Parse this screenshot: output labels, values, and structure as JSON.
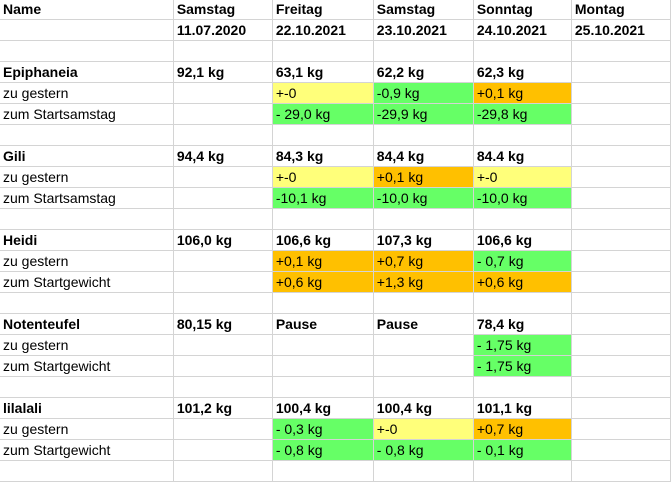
{
  "colors": {
    "yellow": "#ffff7a",
    "green": "#66ff66",
    "orange": "#ffc000"
  },
  "header": {
    "name": "Name",
    "days": [
      "Samstag",
      "Freitag",
      "Samstag",
      "Sonntag",
      "Montag"
    ],
    "dates": [
      "11.07.2020",
      "22.10.2021",
      "23.10.2021",
      "24.10.2021",
      "25.10.2021"
    ]
  },
  "people": [
    {
      "name": "Epiphaneia",
      "weights": [
        "92,1 kg",
        "63,1 kg",
        "62,2 kg",
        "62,3 kg",
        ""
      ],
      "diff_label": "zu gestern",
      "diffs": [
        "",
        "+-0",
        "-0,9 kg",
        "+0,1 kg",
        ""
      ],
      "diff_colors": [
        "",
        "yellow",
        "green",
        "orange",
        ""
      ],
      "start_label": "zum Startsamstag",
      "starts": [
        "",
        "- 29,0 kg",
        "-29,9 kg",
        "-29,8 kg",
        ""
      ],
      "start_colors": [
        "",
        "green",
        "green",
        "green",
        ""
      ]
    },
    {
      "name": "Gili",
      "weights": [
        "94,4 kg",
        "84,3 kg",
        "84,4 kg",
        "84.4 kg",
        ""
      ],
      "diff_label": "zu gestern",
      "diffs": [
        "",
        "+-0",
        "+0,1 kg",
        "+-0",
        ""
      ],
      "diff_colors": [
        "",
        "yellow",
        "orange",
        "yellow",
        ""
      ],
      "start_label": "zum Startsamstag",
      "starts": [
        "",
        "-10,1 kg",
        "-10,0 kg",
        "-10,0 kg",
        ""
      ],
      "start_colors": [
        "",
        "green",
        "green",
        "green",
        ""
      ]
    },
    {
      "name": "Heidi",
      "weights": [
        "106,0 kg",
        "106,6 kg",
        "107,3 kg",
        "106,6 kg",
        ""
      ],
      "diff_label": "zu gestern",
      "diffs": [
        "",
        "+0,1 kg",
        "+0,7 kg",
        "- 0,7 kg",
        ""
      ],
      "diff_colors": [
        "",
        "orange",
        "orange",
        "green",
        ""
      ],
      "start_label": "zum Startgewicht",
      "starts": [
        "",
        "+0,6 kg",
        "+1,3 kg",
        "+0,6 kg",
        ""
      ],
      "start_colors": [
        "",
        "orange",
        "orange",
        "orange",
        ""
      ]
    },
    {
      "name": "Notenteufel",
      "weights": [
        "80,15 kg",
        "Pause",
        "Pause",
        "78,4 kg",
        ""
      ],
      "diff_label": "zu gestern",
      "diffs": [
        "",
        "",
        "",
        "- 1,75 kg",
        ""
      ],
      "diff_colors": [
        "",
        "",
        "",
        "green",
        ""
      ],
      "start_label": "zum Startgewicht",
      "starts": [
        "",
        "",
        "",
        "- 1,75 kg",
        ""
      ],
      "start_colors": [
        "",
        "",
        "",
        "green",
        ""
      ]
    },
    {
      "name": "lilalali",
      "weights": [
        "101,2 kg",
        "100,4 kg",
        "100,4 kg",
        "101,1 kg",
        ""
      ],
      "diff_label": "zu gestern",
      "diffs": [
        "",
        "- 0,3 kg",
        "+-0",
        "+0,7 kg",
        ""
      ],
      "diff_colors": [
        "",
        "green",
        "yellow",
        "orange",
        ""
      ],
      "start_label": "zum Startgewicht",
      "starts": [
        "",
        "- 0,8 kg",
        "- 0,8 kg",
        "- 0,1 kg",
        ""
      ],
      "start_colors": [
        "",
        "green",
        "green",
        "green",
        ""
      ]
    }
  ]
}
